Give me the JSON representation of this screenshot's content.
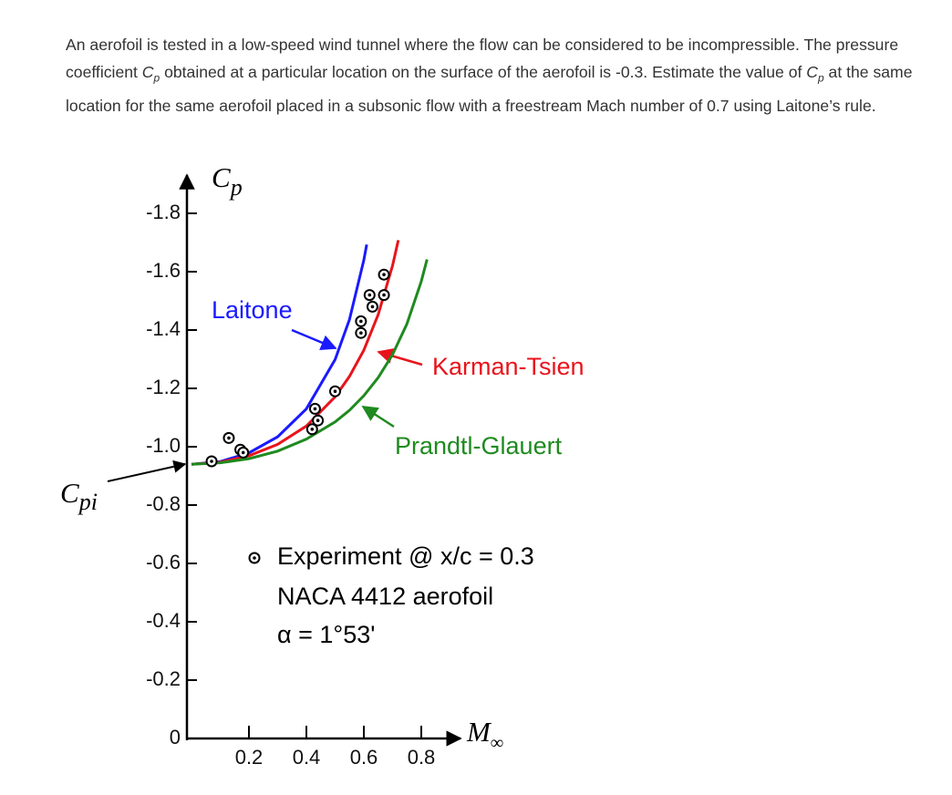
{
  "question_parts": [
    "An aerofoil is tested in a low-speed wind tunnel where the flow can be considered to be incompressible. The pressure coefficient ",
    "C",
    "p",
    " obtained at a particular location on the surface of the aerofoil is -0.3. Estimate the value of ",
    "C",
    "p",
    " at the same location for the same aerofoil placed in a subsonic flow with a freestream Mach number of 0.7 using Laitone’s rule."
  ],
  "chart_data": {
    "type": "line",
    "ylabel_symbol": "C",
    "ylabel_subscript": "p",
    "xlabel_symbol": "M",
    "xlabel_subscript": "∞",
    "marker_symbol": "C",
    "marker_subscript": "pi",
    "xlim": [
      0,
      0.9
    ],
    "xticks": [
      0.2,
      0.4,
      0.6,
      0.8
    ],
    "ylim": [
      0,
      -1.95
    ],
    "yticks": [
      {
        "value": 0,
        "label": "0"
      },
      -0.2,
      -0.4,
      -0.6,
      -0.8,
      {
        "value": -1,
        "label": "-1.0"
      },
      -1.2,
      -1.4,
      -1.6,
      -1.8
    ],
    "series": [
      {
        "name": "Laitone",
        "color": "#1a1aff",
        "x": [
          0,
          0.1,
          0.2,
          0.3,
          0.4,
          0.5,
          0.55,
          0.6,
          0.61
        ],
        "values": [
          -0.94,
          -0.949,
          -0.979,
          -1.034,
          -1.13,
          -1.299,
          -1.436,
          -1.64,
          -1.693
        ]
      },
      {
        "name": "Karman-Tsien",
        "color": "#e8141c",
        "x": [
          0,
          0.1,
          0.2,
          0.3,
          0.4,
          0.5,
          0.55,
          0.6,
          0.65,
          0.7,
          0.72
        ],
        "values": [
          -0.94,
          -0.947,
          -0.969,
          -1.008,
          -1.071,
          -1.171,
          -1.241,
          -1.331,
          -1.453,
          -1.621,
          -1.708
        ]
      },
      {
        "name": "Prandtl-Glauert",
        "color": "#1f8a1f",
        "x": [
          0,
          0.1,
          0.2,
          0.3,
          0.4,
          0.5,
          0.55,
          0.6,
          0.65,
          0.7,
          0.75,
          0.8,
          0.82
        ],
        "values": [
          -0.94,
          -0.945,
          -0.959,
          -0.985,
          -1.026,
          -1.085,
          -1.125,
          -1.175,
          -1.237,
          -1.316,
          -1.421,
          -1.567,
          -1.642
        ]
      }
    ],
    "experiment": {
      "name": "Experiment @ x/c = 0.3",
      "x": [
        0.07,
        0.13,
        0.17,
        0.18,
        0.43,
        0.44,
        0.42,
        0.5,
        0.59,
        0.59,
        0.62,
        0.67,
        0.67,
        0.63
      ],
      "values": [
        -0.95,
        -1.03,
        -0.99,
        -0.98,
        -1.13,
        -1.09,
        -1.06,
        -1.19,
        -1.43,
        -1.39,
        -1.52,
        -1.52,
        -1.59,
        -1.48
      ]
    },
    "notes": [
      "NACA 4412 aerofoil",
      "α = 1°53'"
    ]
  }
}
